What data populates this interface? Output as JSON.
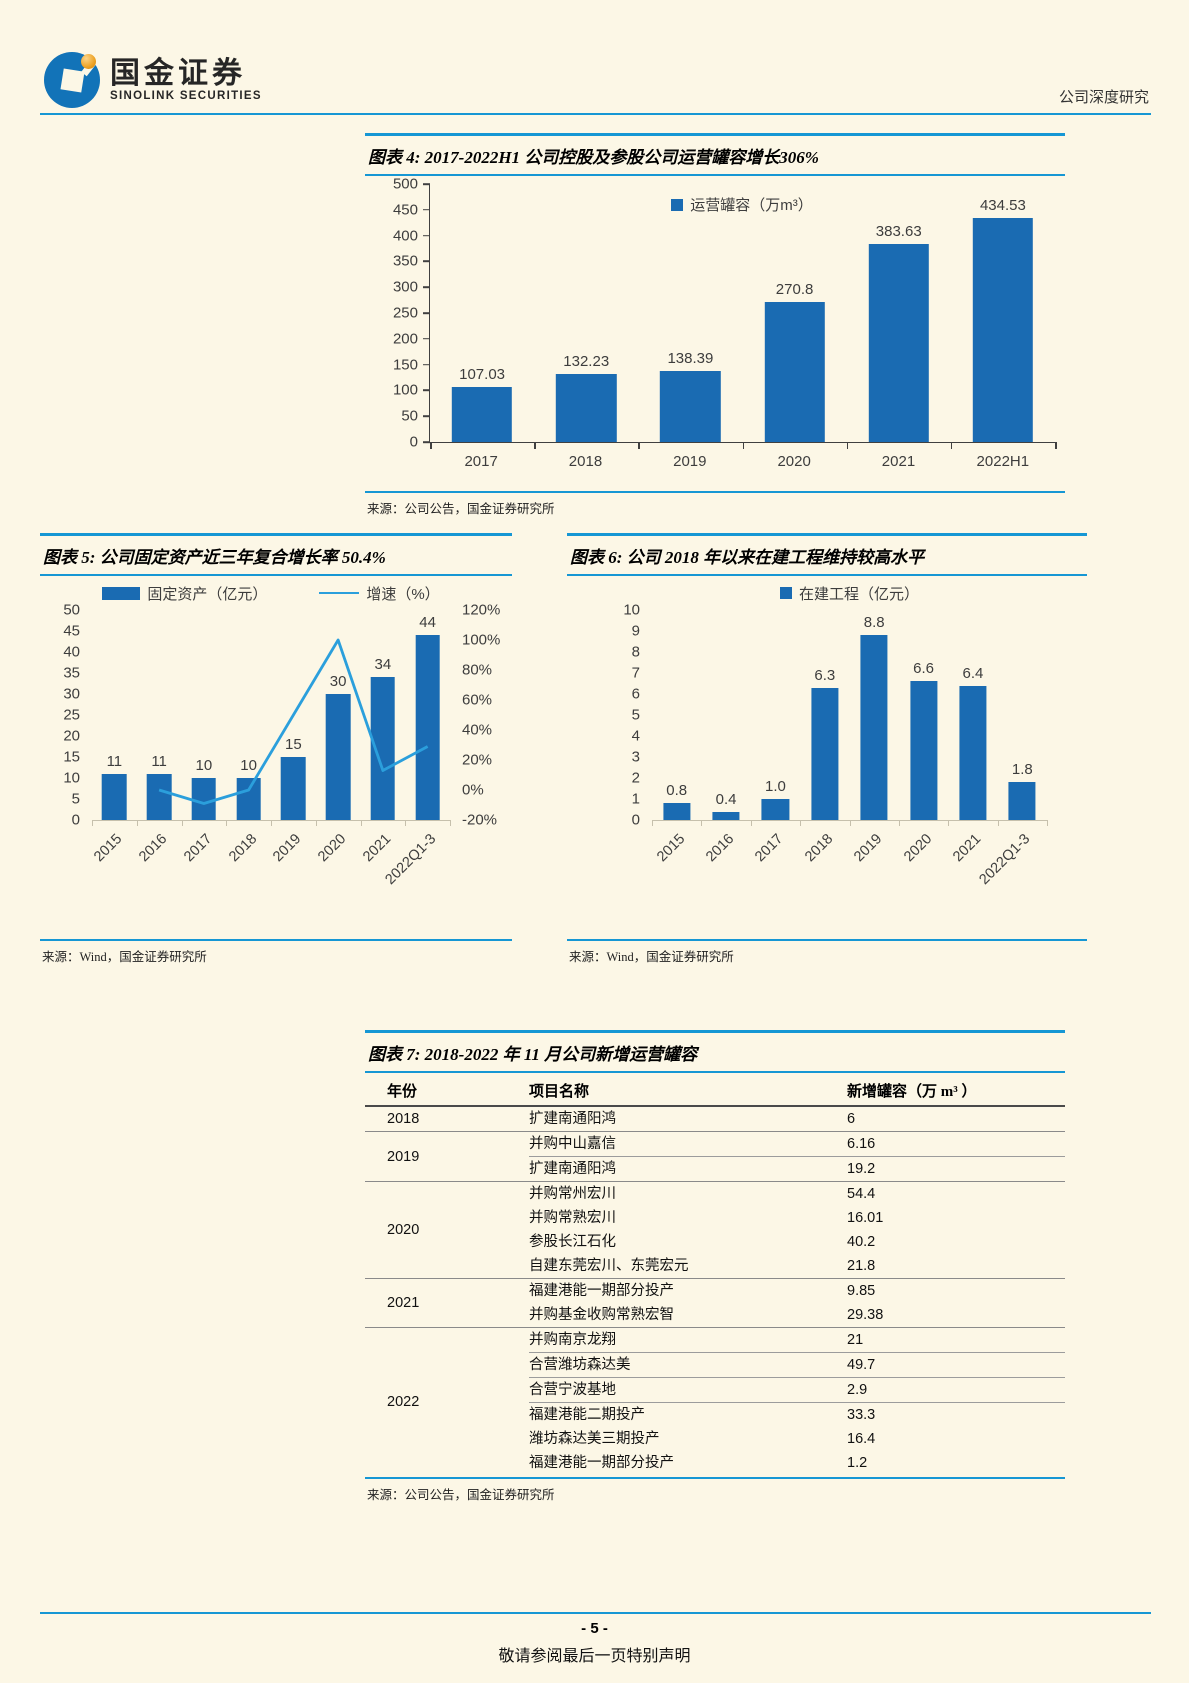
{
  "page": {
    "brand_cn": "国金证券",
    "brand_en": "SINOLINK SECURITIES",
    "header_right": "公司深度研究",
    "page_number": "- 5 -",
    "footer_note": "敬请参阅最后一页特别声明"
  },
  "figure4": {
    "title": "图表 4: 2017-2022H1 公司控股及参股公司运营罐容增长306%",
    "source": "来源：公司公告，国金证券研究所"
  },
  "figure5": {
    "title": "图表 5: 公司固定资产近三年复合增长率 50.4%",
    "source": "来源：Wind，国金证券研究所"
  },
  "figure6": {
    "title": "图表 6: 公司 2018 年以来在建工程维持较高水平",
    "source": "来源：Wind，国金证券研究所"
  },
  "figure7": {
    "title": "图表 7: 2018-2022 年 11 月公司新增运营罐容",
    "source": "来源：公司公告，国金证券研究所",
    "columns": [
      "年份",
      "项目名称",
      "新增罐容（万 m³ ）"
    ],
    "groups": [
      {
        "year": "2018",
        "rows": [
          {
            "project": "扩建南通阳鸿",
            "capacity": "6"
          }
        ]
      },
      {
        "year": "2019",
        "rows": [
          {
            "project": "并购中山嘉信",
            "capacity": "6.16"
          },
          {
            "project": "扩建南通阳鸿",
            "capacity": "19.2",
            "sep": true
          }
        ]
      },
      {
        "year": "2020",
        "rows": [
          {
            "project": "并购常州宏川",
            "capacity": "54.4"
          },
          {
            "project": "并购常熟宏川",
            "capacity": "16.01"
          },
          {
            "project": "参股长江石化",
            "capacity": "40.2"
          },
          {
            "project": "自建东莞宏川、东莞宏元",
            "capacity": "21.8"
          }
        ]
      },
      {
        "year": "2021",
        "rows": [
          {
            "project": "福建港能一期部分投产",
            "capacity": "9.85"
          },
          {
            "project": "并购基金收购常熟宏智",
            "capacity": "29.38"
          }
        ]
      },
      {
        "year": "2022",
        "rows": [
          {
            "project": "并购南京龙翔",
            "capacity": "21"
          },
          {
            "project": "合营潍坊森达美",
            "capacity": "49.7",
            "sep": true
          },
          {
            "project": "合营宁波基地",
            "capacity": "2.9",
            "sep": true
          },
          {
            "project": "福建港能二期投产",
            "capacity": "33.3",
            "sep": true
          },
          {
            "project": "潍坊森达美三期投产",
            "capacity": "16.4"
          },
          {
            "project": "福建港能一期部分投产",
            "capacity": "1.2"
          }
        ]
      }
    ]
  },
  "chart_data": [
    {
      "id": "fig4",
      "type": "bar",
      "title": "图表 4: 2017-2022H1 公司控股及参股公司运营罐容增长306%",
      "legend": [
        "运营罐容（万m³）"
      ],
      "categories": [
        "2017",
        "2018",
        "2019",
        "2020",
        "2021",
        "2022H1"
      ],
      "values": [
        107.03,
        132.23,
        138.39,
        270.8,
        383.63,
        434.53
      ],
      "labels": [
        "107.03",
        "132.23",
        "138.39",
        "270.8",
        "383.63",
        "434.53"
      ],
      "ylim": [
        0,
        500
      ],
      "ytick_step": 50,
      "grid": false,
      "legend_position": "top-center"
    },
    {
      "id": "fig5",
      "type": "bar+line",
      "title": "图表 5: 公司固定资产近三年复合增长率 50.4%",
      "categories": [
        "2015",
        "2016",
        "2017",
        "2018",
        "2019",
        "2020",
        "2021",
        "2022Q1-3"
      ],
      "series": [
        {
          "name": "固定资产（亿元）",
          "type": "bar",
          "axis": "left",
          "values": [
            11,
            11,
            10,
            10,
            15,
            30,
            34,
            44
          ],
          "labels": [
            "11",
            "11",
            "10",
            "10",
            "15",
            "30",
            "34",
            "44"
          ]
        },
        {
          "name": "增速（%）",
          "type": "line",
          "axis": "right",
          "values": [
            null,
            0,
            -9,
            0,
            50,
            100,
            13,
            29
          ],
          "note": "line values estimated from plot / YoY of bars"
        }
      ],
      "ylim": [
        0,
        50
      ],
      "ytick_step": 5,
      "ylim_right": [
        -20,
        120
      ],
      "ytick_step_right": 20,
      "grid": false,
      "legend_position": "top-center"
    },
    {
      "id": "fig6",
      "type": "bar",
      "title": "图表 6: 公司 2018 年以来在建工程维持较高水平",
      "legend": [
        "在建工程（亿元）"
      ],
      "categories": [
        "2015",
        "2016",
        "2017",
        "2018",
        "2019",
        "2020",
        "2021",
        "2022Q1-3"
      ],
      "values": [
        0.8,
        0.4,
        1.0,
        6.3,
        8.8,
        6.6,
        6.4,
        1.8
      ],
      "labels": [
        "0.8",
        "0.4",
        "1.0",
        "6.3",
        "8.8",
        "6.6",
        "6.4",
        "1.8"
      ],
      "ylim": [
        0,
        10
      ],
      "ytick_step": 1,
      "grid": false,
      "legend_position": "top-center"
    }
  ],
  "colors": {
    "bar_blue": "#1a6bb2",
    "line_blue": "#2b9fdc",
    "rule_blue": "#1697d4",
    "background": "#fcf7e6"
  }
}
